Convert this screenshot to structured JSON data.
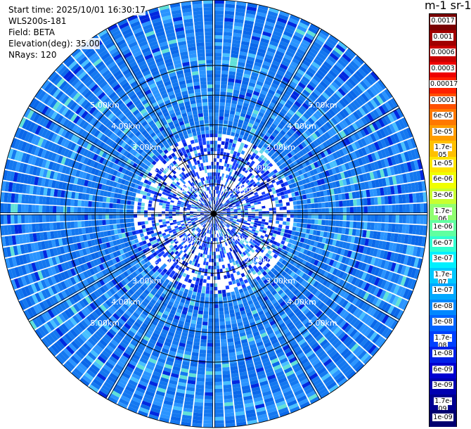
{
  "info": {
    "start_time": "Start time: 2025/10/01 16:30:17",
    "site": "WLS200s-181",
    "field": "Field: BETA",
    "elevation": "Elevation(deg): 35.00",
    "nrays": "NRays: 120"
  },
  "colorbar": {
    "unit_title": "m-1 sr-1",
    "labels": [
      "0.0017",
      "0.001",
      "0.0006",
      "0.0003",
      "0.00017",
      "0.0001",
      "6e-05",
      "3e-05",
      "1.7e-05",
      "1e-05",
      "6e-06",
      "3e-06",
      "1.7e-06",
      "1e-06",
      "6e-07",
      "3e-07",
      "1.7e-07",
      "1e-07",
      "6e-08",
      "3e-08",
      "1.7e-08",
      "1e-08",
      "6e-09",
      "3e-09",
      "1.7e-09",
      "1e-09"
    ],
    "colors": [
      "#7a0000",
      "#a00000",
      "#c80000",
      "#ee0000",
      "#ff2000",
      "#ff5000",
      "#ff7800",
      "#ff9c00",
      "#ffc000",
      "#ffe400",
      "#f0ff00",
      "#c8ff30",
      "#90ff70",
      "#60ffa0",
      "#30ffd0",
      "#00f0ff",
      "#00c8ff",
      "#00a8ff",
      "#0088ff",
      "#0064ff",
      "#0040ff",
      "#0020e8",
      "#0000d0",
      "#0000b0",
      "#000090",
      "#000070"
    ]
  },
  "range_rings": {
    "labels": [
      "1.00km",
      "2.00km",
      "3.00km",
      "4.00km",
      "5.00km"
    ]
  }
}
